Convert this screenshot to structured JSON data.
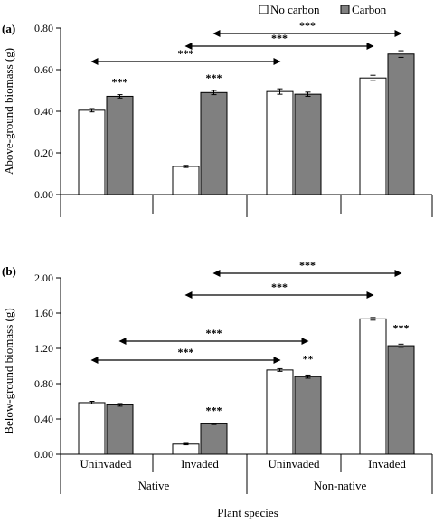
{
  "legend": {
    "entries": [
      {
        "label": "No carbon",
        "color": "#ffffff"
      },
      {
        "label": "Carbon",
        "color": "#808080"
      }
    ]
  },
  "xlabel": "Plant species",
  "chart_data": [
    {
      "type": "bar",
      "panel_label": "(a)",
      "ylabel": "Above-ground biomass (g)",
      "ylim": [
        0,
        0.8
      ],
      "yticks": [
        "0.00",
        "0.20",
        "0.40",
        "0.60",
        "0.80"
      ],
      "categories": [
        "Native Uninvaded",
        "Native Invaded",
        "Non-native Uninvaded",
        "Non-native Invaded"
      ],
      "series": [
        {
          "name": "No carbon",
          "values": [
            0.405,
            0.135,
            0.495,
            0.56
          ],
          "errors": [
            0.008,
            0.005,
            0.013,
            0.013
          ]
        },
        {
          "name": "Carbon",
          "values": [
            0.472,
            0.49,
            0.482,
            0.675
          ],
          "errors": [
            0.008,
            0.01,
            0.01,
            0.016
          ]
        }
      ],
      "bar_marks": [
        "",
        "***",
        "",
        "***",
        "",
        "",
        "",
        ""
      ],
      "comparisons": [
        {
          "from": 0,
          "to": 2,
          "series": 0,
          "label": "***"
        },
        {
          "from": 1,
          "to": 3,
          "series": 0,
          "label": "***"
        },
        {
          "from": 1,
          "to": 3,
          "series": 1,
          "label": "***"
        }
      ]
    },
    {
      "type": "bar",
      "panel_label": "(b)",
      "ylabel": "Below-ground biomass (g)",
      "ylim": [
        0,
        2.0
      ],
      "yticks": [
        "0.00",
        "0.40",
        "0.80",
        "1.20",
        "1.60",
        "2.00"
      ],
      "categories": [
        "Uninvaded",
        "Invaded",
        "Uninvaded",
        "Invaded"
      ],
      "groups": [
        "Native",
        "Non-native"
      ],
      "series": [
        {
          "name": "No carbon",
          "values": [
            0.585,
            0.115,
            0.955,
            1.535
          ],
          "errors": [
            0.015,
            0.008,
            0.015,
            0.015
          ]
        },
        {
          "name": "Carbon",
          "values": [
            0.56,
            0.345,
            0.88,
            1.23
          ],
          "errors": [
            0.015,
            0.008,
            0.018,
            0.018
          ]
        }
      ],
      "bar_marks": [
        "",
        "",
        "",
        "***",
        "",
        "**",
        "",
        "***"
      ],
      "comparisons": [
        {
          "from": 0,
          "to": 2,
          "series": 0,
          "label": "***"
        },
        {
          "from": 0,
          "to": 2,
          "series": 1,
          "label": "***"
        },
        {
          "from": 1,
          "to": 3,
          "series": 0,
          "label": "***"
        },
        {
          "from": 1,
          "to": 3,
          "series": 1,
          "label": "***"
        }
      ]
    }
  ]
}
